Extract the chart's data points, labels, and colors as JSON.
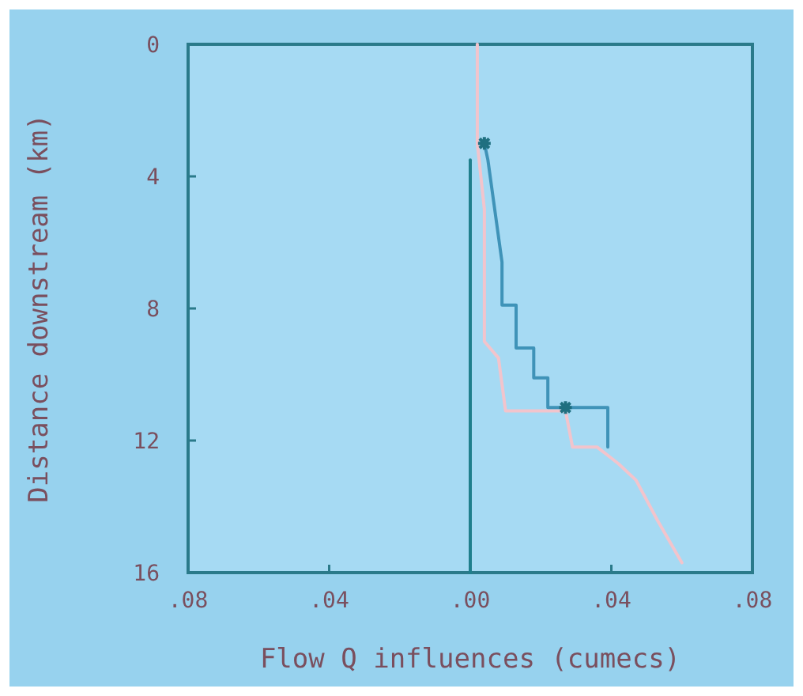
{
  "chart_data": {
    "type": "line",
    "xlabel": "Flow Q influences (cumecs)",
    "ylabel": "Distance downstream (km)",
    "xlim": [
      -0.08,
      0.08
    ],
    "xticks": [
      {
        "value": -0.08,
        "label": ".08"
      },
      {
        "value": -0.04,
        "label": ".04"
      },
      {
        "value": 0,
        "label": ".00"
      },
      {
        "value": 0.04,
        "label": ".04"
      },
      {
        "value": 0.08,
        "label": ".08"
      }
    ],
    "ylim": [
      16,
      0
    ],
    "yticks": [
      0,
      4,
      8,
      12,
      16
    ],
    "grid": false,
    "marker": "none",
    "line_style": "solid",
    "series": [
      {
        "color": "#1f7f8c",
        "x": [
          0,
          0
        ],
        "values": [
          3.5,
          16
        ]
      },
      {
        "color": "#f2c4cc",
        "x": [
          0.002,
          0.002,
          0.004,
          0.004,
          0.008,
          0.01,
          0.027,
          0.029,
          0.036,
          0.042,
          0.047,
          0.053,
          0.06
        ],
        "values": [
          0,
          3.0,
          5.0,
          9.0,
          9.5,
          11.1,
          11.1,
          12.2,
          12.2,
          12.7,
          13.2,
          14.4,
          15.7
        ]
      },
      {
        "color": "#3f93b8",
        "x": [
          0.004,
          0.005,
          0.009,
          0.009,
          0.013,
          0.013,
          0.018,
          0.018,
          0.022,
          0.022,
          0.039,
          0.039
        ],
        "values": [
          3.0,
          3.5,
          6.6,
          7.9,
          7.9,
          9.2,
          9.2,
          10.1,
          10.1,
          11.0,
          11.0,
          12.2
        ]
      },
      {
        "type": "scatter",
        "marker": "cross",
        "color": "#1f6f80",
        "x": [
          0.004,
          0.027
        ],
        "values": [
          3.0,
          11.0
        ]
      }
    ]
  }
}
